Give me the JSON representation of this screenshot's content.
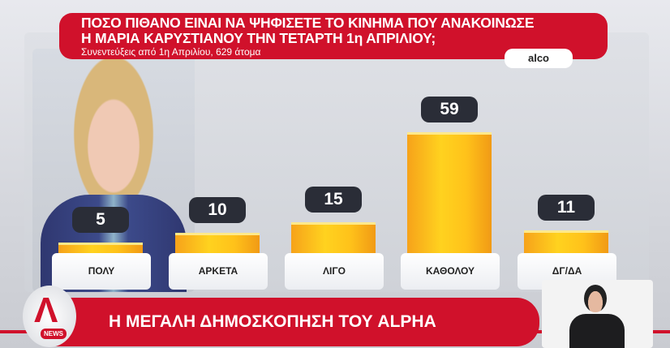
{
  "header": {
    "line1": "ΠΟΣΟ ΠΙΘΑΝΟ ΕΙΝΑΙ ΝΑ ΨΗΦΙΣΕΤΕ ΤΟ ΚΙΝΗΜΑ ΠΟΥ ΑΝΑΚΟΙΝΩΣΕ",
    "line2": "Η ΜΑΡΙΑ ΚΑΡΥΣΤΙΑΝΟΥ ΤΗΝ ΤΕΤΑΡΤΗ 1η ΑΠΡΙΛΙΟΥ;",
    "subtitle": "Συνεντεύξεις από 1η Απριλίου, 629 άτομα",
    "source": "alco"
  },
  "banner": {
    "text": "Η ΜΕΓΑΛΗ ΔΗΜΟΣΚΟΠΗΣΗ ΤΟΥ ALPHA",
    "logo_letter": "A",
    "logo_news": "NEWS"
  },
  "colors": {
    "accent": "#d0112b",
    "bar": "#ffc21a",
    "badge": "#2a2d37"
  },
  "chart_data": {
    "type": "bar",
    "title": "ΠΟΣΟ ΠΙΘΑΝΟ ΕΙΝΑΙ ΝΑ ΨΗΦΙΣΕΤΕ ΤΟ ΚΙΝΗΜΑ ΠΟΥ ΑΝΑΚΟΙΝΩΣΕ Η ΜΑΡΙΑ ΚΑΡΥΣΤΙΑΝΟΥ ΤΗΝ ΤΕΤΑΡΤΗ 1η ΑΠΡΙΛΙΟΥ;",
    "subtitle": "Συνεντεύξεις από 1η Απριλίου, 629 άτομα",
    "categories": [
      "ΠΟΛΥ",
      "ΑΡΚΕΤΑ",
      "ΛΙΓΟ",
      "ΚΑΘΟΛΟΥ",
      "ΔΓ/ΔΑ"
    ],
    "values": [
      5,
      10,
      15,
      59,
      11
    ],
    "grid": false
  }
}
